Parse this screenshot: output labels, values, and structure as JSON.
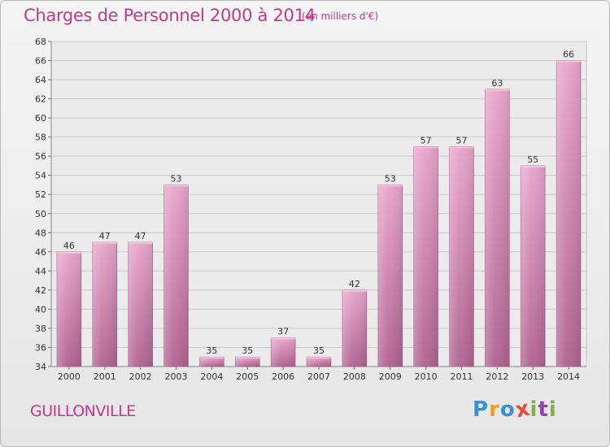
{
  "header": {
    "title": "Charges de Personnel 2000 à 2014",
    "subtitle": "(en milliers d'€)"
  },
  "footer": {
    "town": "GUILLONVILLE",
    "logo_letters": [
      "P",
      "r",
      "o",
      "x",
      "i",
      "t",
      "i"
    ],
    "logo_colors": [
      "#3a8fd6",
      "#f39c12",
      "#3a8fd6",
      "#e74c3c",
      "#7cb342",
      "#8e44ad",
      "#7cb342"
    ]
  },
  "chart_data": {
    "type": "bar",
    "categories": [
      "2000",
      "2001",
      "2002",
      "2003",
      "2004",
      "2005",
      "2006",
      "2007",
      "2008",
      "2009",
      "2010",
      "2011",
      "2012",
      "2013",
      "2014"
    ],
    "values": [
      46,
      47,
      47,
      53,
      35,
      35,
      37,
      35,
      42,
      53,
      57,
      57,
      63,
      55,
      66
    ],
    "data_labels": [
      "46",
      "47",
      "47",
      "53",
      "35",
      "35",
      "37",
      "35",
      "42",
      "53",
      "57",
      "57",
      "63",
      "55",
      "66"
    ],
    "ylim": [
      34,
      68
    ],
    "yticks": [
      "34",
      "36",
      "38",
      "40",
      "42",
      "44",
      "46",
      "48",
      "50",
      "52",
      "54",
      "56",
      "58",
      "60",
      "62",
      "64",
      "66",
      "68"
    ],
    "grid": true,
    "bar_color_top": "#e8a5cc",
    "bar_color_bottom": "#b0628f",
    "xlabel": "",
    "ylabel": ""
  }
}
